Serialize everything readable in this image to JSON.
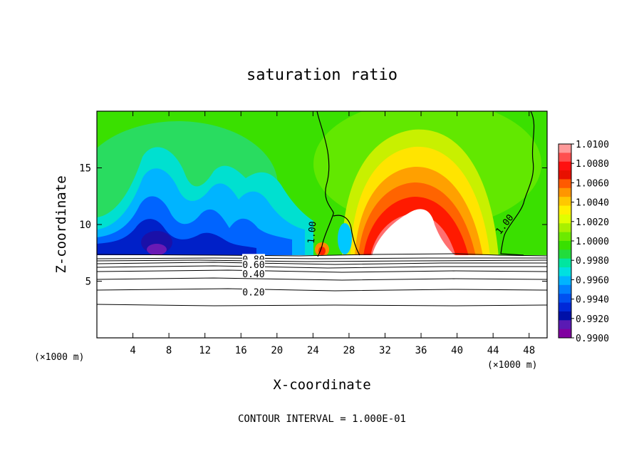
{
  "chart_data": {
    "type": "heatmap",
    "title": "saturation ratio",
    "xlabel": "X-coordinate",
    "ylabel": "Z-coordinate",
    "x_unit": "(×1000 m)",
    "z_unit": "(×1000 m)",
    "xlim": [
      0,
      50
    ],
    "ylim": [
      0,
      20
    ],
    "x_ticks": [
      4,
      8,
      12,
      16,
      20,
      24,
      28,
      32,
      36,
      40,
      44,
      48
    ],
    "y_ticks": [
      5,
      10,
      15
    ],
    "footer": "CONTOUR INTERVAL = 1.000E-01",
    "colorbar": {
      "min": 0.99,
      "max": 1.01,
      "labels": [
        "1.0100",
        "1.0080",
        "1.0060",
        "1.0040",
        "1.0020",
        "1.0000",
        "0.9980",
        "0.9960",
        "0.9940",
        "0.9920",
        "0.9900"
      ],
      "colors": [
        "#ff9a9a",
        "#ff5050",
        "#ff1010",
        "#e81000",
        "#ff5a00",
        "#ff9600",
        "#ffc800",
        "#fff000",
        "#e0ff00",
        "#a8f000",
        "#6cea00",
        "#38e000",
        "#22dc3c",
        "#00e6a0",
        "#00e0e0",
        "#00b4ff",
        "#0080ff",
        "#0050f0",
        "#0028d8",
        "#0010a8",
        "#5a1ab4",
        "#8000a0"
      ]
    },
    "contour_labels": [
      {
        "text": "1.00",
        "x": 23.9,
        "z": 9.3,
        "angle": -85
      },
      {
        "text": "1.00",
        "x": 45.3,
        "z": 10.0,
        "angle": -52
      },
      {
        "text": "0.80",
        "x": 17.4,
        "z": 6.9,
        "angle": 0
      },
      {
        "text": "0.60",
        "x": 17.4,
        "z": 6.4,
        "angle": 0
      },
      {
        "text": "0.40",
        "x": 17.4,
        "z": 5.6,
        "angle": 0
      },
      {
        "text": "0.20",
        "x": 17.4,
        "z": 4.0,
        "angle": 0
      }
    ]
  }
}
